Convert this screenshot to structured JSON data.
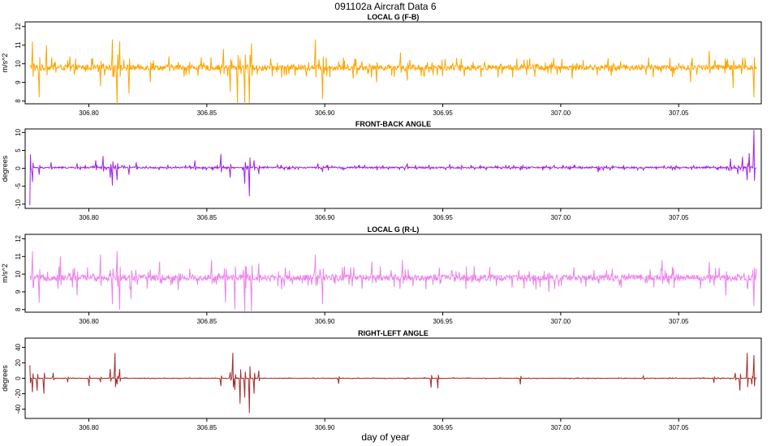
{
  "figure": {
    "title": "091102a   Aircraft Data 6",
    "xlabel": "day of year"
  },
  "chart_data": [
    {
      "type": "line",
      "title": "LOCAL G (F-B)",
      "ylabel": "m/s^2",
      "xlim": [
        306.773,
        307.085
      ],
      "ylim": [
        7.85,
        12.25
      ],
      "xticks": [
        306.8,
        306.85,
        306.9,
        306.95,
        307.0,
        307.05
      ],
      "xtick_labels": [
        "306.80",
        "306.85",
        "306.90",
        "306.95",
        "307.00",
        "307.05"
      ],
      "yticks": [
        8,
        9,
        10,
        11,
        12
      ],
      "ytick_labels": [
        "8",
        "9",
        "10",
        "11",
        "12"
      ],
      "series": [
        {
          "color": "#FFA500",
          "x_range": [
            306.775,
            307.083
          ],
          "baseline": 9.8,
          "noise_amplitude": 0.25,
          "spikes": [
            [
              306.776,
              1.4
            ],
            [
              306.779,
              -1.6
            ],
            [
              306.782,
              1.2
            ],
            [
              306.792,
              0.6
            ],
            [
              306.805,
              -1.0
            ],
            [
              306.81,
              1.5
            ],
            [
              306.812,
              -2.0
            ],
            [
              306.813,
              1.4
            ],
            [
              306.817,
              -1.4
            ],
            [
              306.826,
              -0.8
            ],
            [
              306.834,
              0.6
            ],
            [
              306.857,
              1.0
            ],
            [
              306.86,
              -1.3
            ],
            [
              306.863,
              -1.9
            ],
            [
              306.866,
              -2.0
            ],
            [
              306.868,
              -1.9
            ],
            [
              306.869,
              1.3
            ],
            [
              306.896,
              1.5
            ],
            [
              306.899,
              -1.7
            ],
            [
              306.912,
              -0.6
            ],
            [
              306.922,
              -0.8
            ],
            [
              306.932,
              0.8
            ],
            [
              306.935,
              -0.7
            ],
            [
              306.946,
              -0.4
            ],
            [
              306.989,
              -0.5
            ],
            [
              307.005,
              -0.6
            ],
            [
              307.02,
              0.5
            ],
            [
              307.055,
              -0.8
            ],
            [
              307.063,
              0.9
            ],
            [
              307.073,
              -1.1
            ],
            [
              307.082,
              -1.6
            ]
          ]
        }
      ]
    },
    {
      "type": "line",
      "title": "FRONT-BACK ANGLE",
      "ylabel": "degrees",
      "xlim": [
        306.773,
        307.085
      ],
      "ylim": [
        -11.2,
        11.0
      ],
      "xticks": [
        306.8,
        306.85,
        306.9,
        306.95,
        307.0,
        307.05
      ],
      "xtick_labels": [
        "306.80",
        "306.85",
        "306.90",
        "306.95",
        "307.00",
        "307.05"
      ],
      "yticks": [
        -10,
        -5,
        0,
        5,
        10
      ],
      "ytick_labels": [
        "-10",
        "-5",
        "0",
        "5",
        "10"
      ],
      "series": [
        {
          "color": "#A020F0",
          "x_range": [
            306.775,
            307.083
          ],
          "baseline": 0.2,
          "noise_amplitude": 0.35,
          "spikes": [
            [
              306.775,
              -10.5
            ],
            [
              306.776,
              -4.0
            ],
            [
              306.779,
              -2.0
            ],
            [
              306.784,
              1.5
            ],
            [
              306.795,
              1.2
            ],
            [
              306.803,
              2.0
            ],
            [
              306.806,
              3.2
            ],
            [
              306.809,
              -2.8
            ],
            [
              306.81,
              -5.0
            ],
            [
              306.812,
              -3.5
            ],
            [
              306.817,
              -2.0
            ],
            [
              306.82,
              1.5
            ],
            [
              306.845,
              2.0
            ],
            [
              306.856,
              3.8
            ],
            [
              306.86,
              -2.8
            ],
            [
              306.866,
              -4.5
            ],
            [
              306.868,
              -8.0
            ],
            [
              306.87,
              2.0
            ],
            [
              306.872,
              -1.8
            ],
            [
              306.897,
              1.2
            ],
            [
              306.899,
              -1.2
            ],
            [
              306.935,
              1.2
            ],
            [
              306.953,
              1.0
            ],
            [
              306.983,
              -0.8
            ],
            [
              307.016,
              -1.3
            ],
            [
              307.018,
              -0.8
            ],
            [
              307.072,
              2.5
            ],
            [
              307.075,
              -1.8
            ],
            [
              307.077,
              3.0
            ],
            [
              307.079,
              -3.5
            ],
            [
              307.08,
              4.0
            ],
            [
              307.082,
              10.5
            ]
          ]
        }
      ]
    },
    {
      "type": "line",
      "title": "LOCAL G (R-L)",
      "ylabel": "m/s^2",
      "xlim": [
        306.773,
        307.085
      ],
      "ylim": [
        7.85,
        12.25
      ],
      "xticks": [
        306.8,
        306.85,
        306.9,
        306.95,
        307.0,
        307.05
      ],
      "xtick_labels": [
        "306.80",
        "306.85",
        "306.90",
        "306.95",
        "307.00",
        "307.05"
      ],
      "yticks": [
        8,
        9,
        10,
        11,
        12
      ],
      "ytick_labels": [
        "8",
        "9",
        "10",
        "11",
        "12"
      ],
      "series": [
        {
          "color": "#EE82EE",
          "x_range": [
            306.775,
            307.083
          ],
          "baseline": 9.8,
          "noise_amplitude": 0.3,
          "spikes": [
            [
              306.776,
              1.5
            ],
            [
              306.779,
              -1.4
            ],
            [
              306.788,
              1.2
            ],
            [
              306.795,
              -1.0
            ],
            [
              306.805,
              1.3
            ],
            [
              306.81,
              -1.5
            ],
            [
              306.812,
              1.5
            ],
            [
              306.813,
              -1.8
            ],
            [
              306.818,
              -1.2
            ],
            [
              306.83,
              0.9
            ],
            [
              306.838,
              -0.7
            ],
            [
              306.852,
              1.0
            ],
            [
              306.858,
              -1.4
            ],
            [
              306.862,
              -1.8
            ],
            [
              306.866,
              -1.9
            ],
            [
              306.869,
              -2.0
            ],
            [
              306.872,
              0.8
            ],
            [
              306.896,
              1.3
            ],
            [
              306.899,
              -1.5
            ],
            [
              306.92,
              0.9
            ],
            [
              306.933,
              1.0
            ],
            [
              306.946,
              -0.4
            ],
            [
              306.97,
              0.6
            ],
            [
              306.995,
              -0.8
            ],
            [
              307.043,
              1.0
            ],
            [
              307.063,
              0.9
            ],
            [
              307.07,
              -1.0
            ],
            [
              307.082,
              -1.6
            ]
          ]
        }
      ]
    },
    {
      "type": "line",
      "title": "RIGHT-LEFT ANGLE",
      "ylabel": "degrees",
      "xlim": [
        306.773,
        307.085
      ],
      "ylim": [
        -52,
        52
      ],
      "xticks": [
        306.8,
        306.85,
        306.9,
        306.95,
        307.0,
        307.05
      ],
      "xtick_labels": [
        "306.80",
        "306.85",
        "306.90",
        "306.95",
        "307.00",
        "307.05"
      ],
      "yticks": [
        -40,
        -20,
        0,
        20,
        40
      ],
      "ytick_labels": [
        "-40",
        "-20",
        "0",
        "20",
        "40"
      ],
      "series": [
        {
          "color": "#A52A2A",
          "x_range": [
            306.775,
            307.083
          ],
          "baseline": 0.0,
          "noise_amplitude": 0.4,
          "spikes": [
            [
              306.775,
              17
            ],
            [
              306.776,
              -18
            ],
            [
              306.778,
              -16
            ],
            [
              306.781,
              -20
            ],
            [
              306.785,
              7
            ],
            [
              306.791,
              -5
            ],
            [
              306.8,
              -10
            ],
            [
              306.805,
              -5
            ],
            [
              306.809,
              12
            ],
            [
              306.811,
              33
            ],
            [
              306.812,
              -8
            ],
            [
              306.813,
              12
            ],
            [
              306.856,
              -10
            ],
            [
              306.86,
              8
            ],
            [
              306.861,
              33
            ],
            [
              306.862,
              -15
            ],
            [
              306.864,
              -33
            ],
            [
              306.866,
              -25
            ],
            [
              306.868,
              -45
            ],
            [
              306.87,
              -20
            ],
            [
              306.872,
              10
            ],
            [
              306.906,
              -7
            ],
            [
              306.945,
              -12
            ],
            [
              306.948,
              -13
            ],
            [
              306.983,
              -8
            ],
            [
              307.035,
              3
            ],
            [
              307.065,
              -6
            ],
            [
              307.074,
              7
            ],
            [
              307.076,
              -16
            ],
            [
              307.079,
              33
            ],
            [
              307.081,
              -8
            ],
            [
              307.082,
              30
            ]
          ]
        }
      ]
    }
  ]
}
